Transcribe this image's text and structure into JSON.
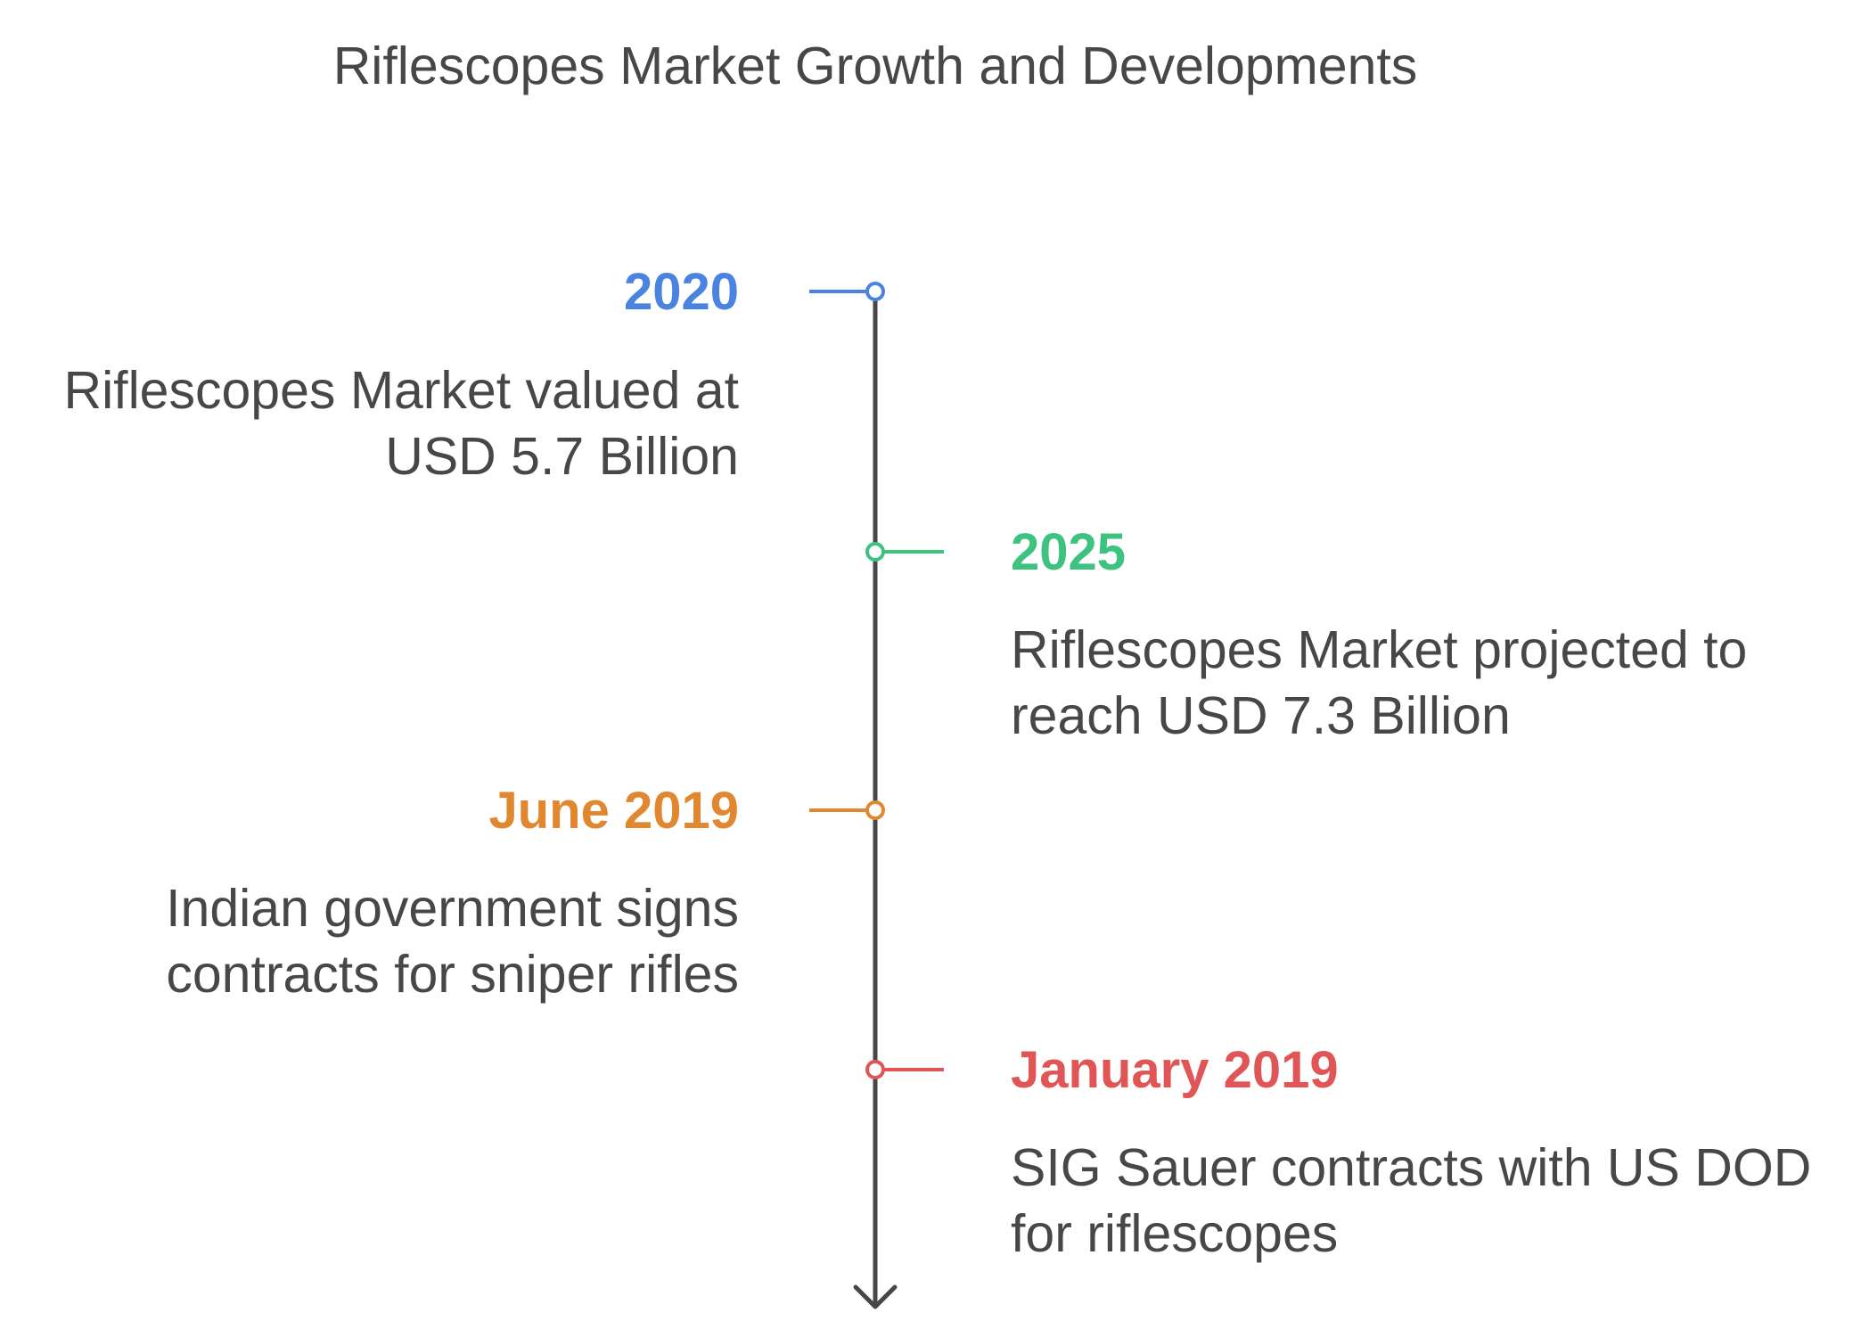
{
  "title": "Riflescopes Market Growth and Developments",
  "colors": {
    "text": "#474747",
    "axis": "#474747"
  },
  "events": [
    {
      "label": "2020",
      "color": "#4a84e0",
      "description": [
        "Riflescopes Market valued at",
        "USD 5.7 Billion"
      ]
    },
    {
      "label": "2025",
      "color": "#3dc27f",
      "description": [
        "Riflescopes Market projected to",
        "reach USD 7.3 Billion"
      ]
    },
    {
      "label": "June 2019",
      "color": "#e0872f",
      "description": [
        "Indian government signs",
        "contracts for sniper rifles"
      ]
    },
    {
      "label": "January 2019",
      "color": "#e05555",
      "description": [
        "SIG Sauer contracts with US DOD",
        "for riflescopes"
      ]
    }
  ]
}
